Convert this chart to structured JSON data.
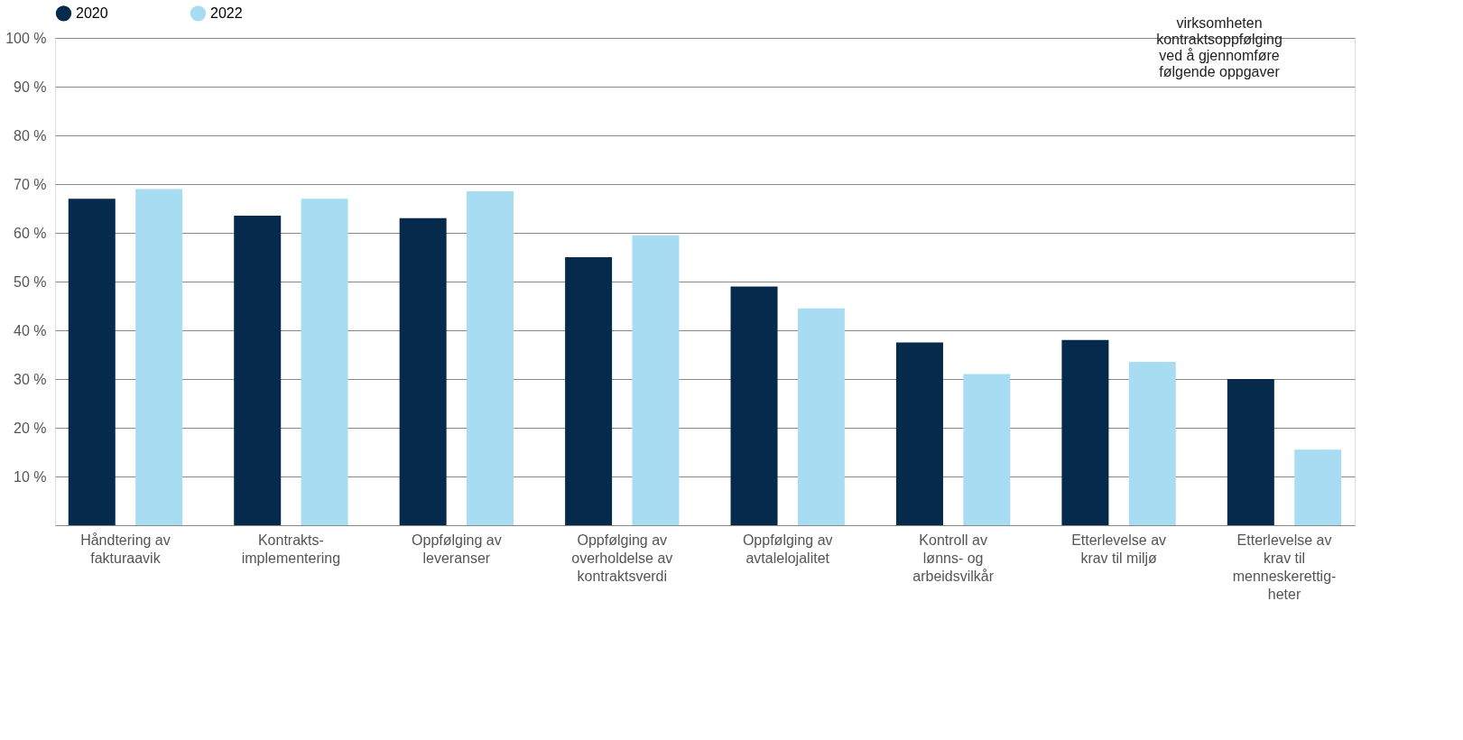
{
  "chart_data": {
    "type": "bar",
    "categories": [
      "Håndtering av\nfakturaavik",
      "Kontrakts-\nimplementering",
      "Oppfølging av\nleveranser",
      "Oppfølging av\noverholdelse av\nkontraktsverdi",
      "Oppfølging av\navtalelojalitet",
      "Kontroll av\nlønns- og\narbeidsvilkår",
      "Etterlevelse av\nkrav til miljø",
      "Etterlevelse av\nkrav til\nmenneskerettig-\nheter"
    ],
    "series": [
      {
        "name": "2020",
        "color": "#062a4c",
        "values": [
          67,
          63.5,
          63,
          55,
          49,
          37.5,
          38,
          30
        ]
      },
      {
        "name": "2022",
        "color": "#a8dcf2",
        "values": [
          69,
          67,
          68.5,
          59.5,
          44.5,
          31,
          33.5,
          15.5
        ]
      }
    ],
    "ylim": [
      0,
      100
    ],
    "yticks": [
      {
        "value": 10,
        "label": "10 %"
      },
      {
        "value": 20,
        "label": "20 %"
      },
      {
        "value": 30,
        "label": "30 %"
      },
      {
        "value": 40,
        "label": "40 %"
      },
      {
        "value": 50,
        "label": "50 %"
      },
      {
        "value": 60,
        "label": "60 %"
      },
      {
        "value": 70,
        "label": "70 %"
      },
      {
        "value": 80,
        "label": "80 %"
      },
      {
        "value": 90,
        "label": "90 %"
      },
      {
        "value": 100,
        "label": "100 %"
      }
    ],
    "grid": "y",
    "legend": "top",
    "annotations": [
      "virksomheten\nkontraktsoppfølging\nved å gjennomføre\nfølgende oppgaver"
    ]
  }
}
